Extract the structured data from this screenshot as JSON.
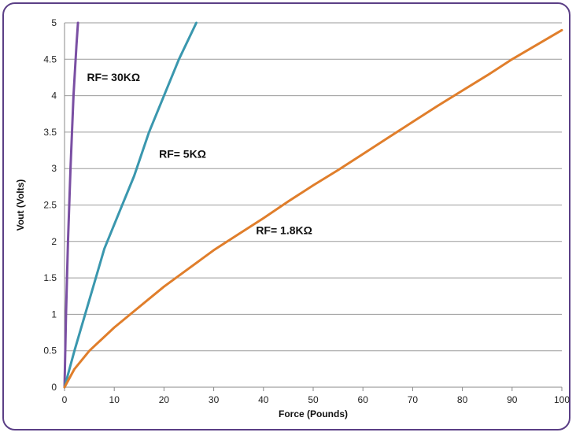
{
  "chart_data": {
    "type": "line",
    "title": "",
    "xlabel": "Force (Pounds)",
    "ylabel": "Vout (Volts)",
    "xlim": [
      0,
      100
    ],
    "ylim": [
      0,
      5
    ],
    "xticks": [
      0,
      10,
      20,
      30,
      40,
      50,
      60,
      70,
      80,
      90,
      100
    ],
    "yticks": [
      0,
      0.5,
      1,
      1.5,
      2,
      2.5,
      3,
      3.5,
      4,
      4.5,
      5
    ],
    "xtick_labels": [
      "0",
      "10",
      "20",
      "30",
      "40",
      "50",
      "60",
      "70",
      "80",
      "90",
      "100"
    ],
    "ytick_labels": [
      "0",
      "0.5",
      "1",
      "1.5",
      "2",
      "2.5",
      "3",
      "3.5",
      "4",
      "4.5",
      "5"
    ],
    "grid": "horizontal",
    "legend": "none",
    "series": [
      {
        "label": "RF= 30KΩ",
        "color": "#7a4fa3",
        "x": [
          0,
          0.3,
          0.7,
          1.2,
          1.8,
          2.4,
          2.7
        ],
        "y": [
          0,
          1.0,
          2.0,
          3.0,
          4.0,
          4.7,
          5.0
        ]
      },
      {
        "label": "RF= 5KΩ",
        "color": "#3a97ae",
        "x": [
          0,
          2,
          5,
          8,
          11,
          14,
          17,
          20,
          23,
          26.5
        ],
        "y": [
          0,
          0.5,
          1.2,
          1.9,
          2.4,
          2.9,
          3.5,
          4.0,
          4.5,
          5.0
        ]
      },
      {
        "label": "RF= 1.8KΩ",
        "color": "#e07e2b",
        "x": [
          0,
          2,
          5,
          10,
          15,
          20,
          25,
          30,
          35,
          40,
          45,
          50,
          55,
          60,
          65,
          70,
          75,
          80,
          85,
          90,
          95,
          100
        ],
        "y": [
          0,
          0.25,
          0.5,
          0.82,
          1.1,
          1.38,
          1.63,
          1.88,
          2.1,
          2.32,
          2.55,
          2.77,
          2.98,
          3.2,
          3.42,
          3.64,
          3.86,
          4.07,
          4.28,
          4.5,
          4.7,
          4.9
        ]
      }
    ],
    "annotations": [
      {
        "text": "RF= 30KΩ",
        "x": 4.5,
        "y": 4.2
      },
      {
        "text": "RF= 5KΩ",
        "x": 19,
        "y": 3.15
      },
      {
        "text": "RF= 1.8KΩ",
        "x": 38.5,
        "y": 2.1
      }
    ]
  }
}
